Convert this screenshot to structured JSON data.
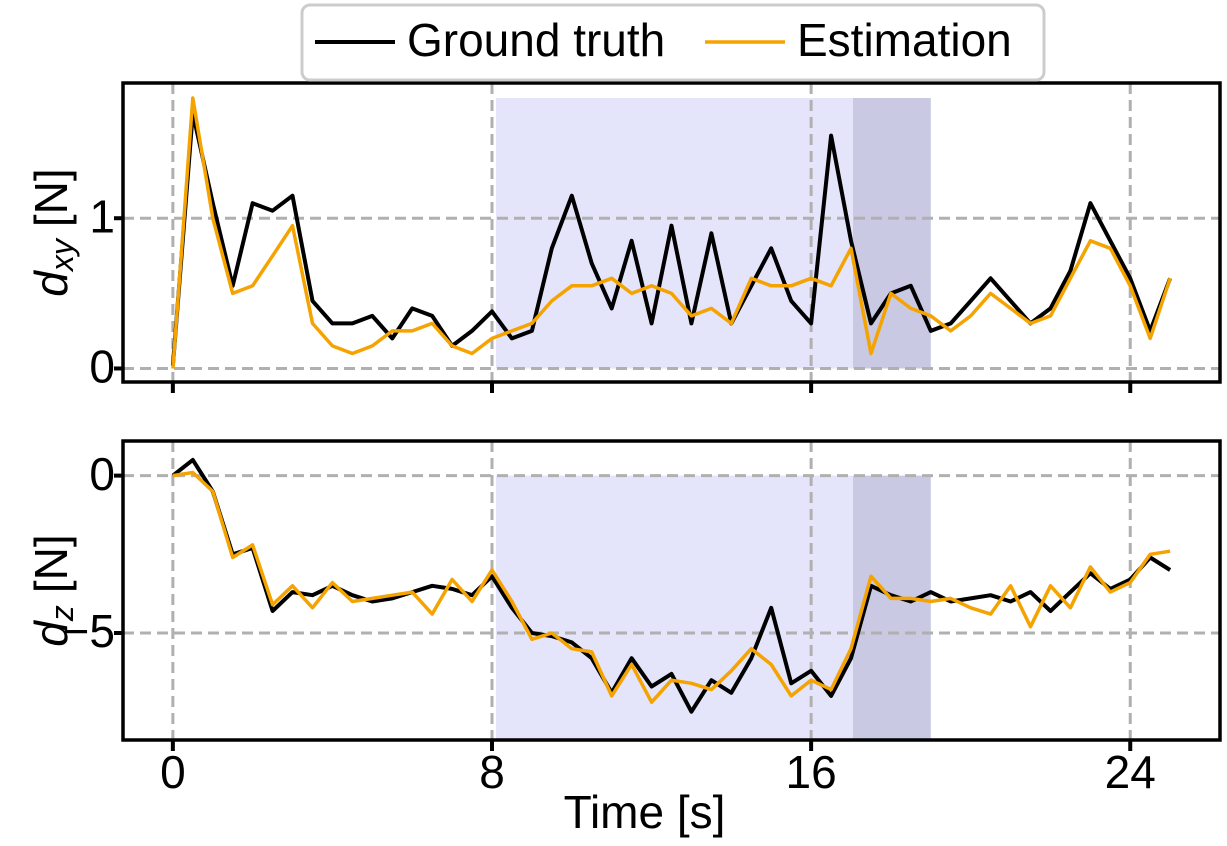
{
  "legend": {
    "position": "upper center",
    "outside": true
  },
  "chart_data": [
    {
      "type": "line",
      "ylabel": [
        "d",
        "xy",
        "[N]"
      ],
      "x": [
        0,
        0.5,
        1,
        1.5,
        2,
        2.5,
        3,
        3.5,
        4,
        4.5,
        5,
        5.5,
        6,
        6.5,
        7,
        7.5,
        8,
        8.5,
        9,
        9.5,
        10,
        10.5,
        11,
        11.5,
        12,
        12.5,
        13,
        13.5,
        14,
        14.5,
        15,
        15.5,
        16,
        16.5,
        17,
        17.5,
        18,
        18.5,
        19,
        19.5,
        20,
        20.5,
        21,
        21.5,
        22,
        22.5,
        23,
        23.5,
        24,
        24.5,
        25
      ],
      "series": [
        {
          "name": "Ground truth",
          "color": "#000000",
          "values": [
            0.02,
            1.7,
            1.1,
            0.55,
            1.1,
            1.05,
            1.15,
            0.45,
            0.3,
            0.3,
            0.35,
            0.2,
            0.4,
            0.35,
            0.15,
            0.25,
            0.38,
            0.2,
            0.25,
            0.8,
            1.15,
            0.7,
            0.4,
            0.85,
            0.3,
            0.95,
            0.3,
            0.9,
            0.3,
            0.55,
            0.8,
            0.45,
            0.3,
            1.55,
            0.85,
            0.3,
            0.5,
            0.55,
            0.25,
            0.3,
            0.45,
            0.6,
            0.45,
            0.3,
            0.4,
            0.65,
            1.1,
            0.85,
            0.6,
            0.25,
            0.6
          ]
        },
        {
          "name": "Estimation",
          "color": "#f5a300",
          "values": [
            0,
            1.8,
            1.0,
            0.5,
            0.55,
            0.75,
            0.95,
            0.3,
            0.15,
            0.1,
            0.15,
            0.25,
            0.25,
            0.3,
            0.15,
            0.1,
            0.2,
            0.25,
            0.3,
            0.45,
            0.55,
            0.55,
            0.6,
            0.5,
            0.55,
            0.5,
            0.35,
            0.4,
            0.3,
            0.6,
            0.55,
            0.55,
            0.6,
            0.55,
            0.8,
            0.1,
            0.5,
            0.4,
            0.35,
            0.25,
            0.35,
            0.5,
            0.4,
            0.3,
            0.35,
            0.6,
            0.85,
            0.8,
            0.55,
            0.2,
            0.6
          ]
        }
      ],
      "shaded_regions": [
        {
          "x": [
            8.1,
            17.05
          ],
          "y": [
            0,
            1.8
          ],
          "color": "#e4e4fb"
        },
        {
          "x": [
            17.05,
            19.0
          ],
          "y": [
            0,
            1.8
          ],
          "color": "#c9c9e3"
        }
      ],
      "xlim": [
        -1.25,
        26.25
      ],
      "xticks": [
        0,
        8,
        16,
        24
      ],
      "ylim": [
        -0.09,
        1.9
      ],
      "yticks": [
        0,
        1
      ],
      "grid": true
    },
    {
      "type": "line",
      "ylabel": [
        "d",
        "z",
        "[N]"
      ],
      "xlabel": "Time [s]",
      "x": [
        0,
        0.5,
        1,
        1.5,
        2,
        2.5,
        3,
        3.5,
        4,
        4.5,
        5,
        5.5,
        6,
        6.5,
        7,
        7.5,
        8,
        8.5,
        9,
        9.5,
        10,
        10.5,
        11,
        11.5,
        12,
        12.5,
        13,
        13.5,
        14,
        14.5,
        15,
        15.5,
        16,
        16.5,
        17,
        17.5,
        18,
        18.5,
        19,
        19.5,
        20,
        20.5,
        21,
        21.5,
        22,
        22.5,
        23,
        23.5,
        24,
        24.5,
        25
      ],
      "series": [
        {
          "color": "#000000",
          "values": [
            0,
            0.5,
            -0.5,
            -2.5,
            -2.3,
            -4.3,
            -3.7,
            -3.8,
            -3.5,
            -3.8,
            -4.0,
            -3.9,
            -3.7,
            -3.5,
            -3.6,
            -3.8,
            -3.2,
            -4.2,
            -5.0,
            -5.1,
            -5.3,
            -5.8,
            -6.9,
            -5.8,
            -6.7,
            -6.3,
            -7.5,
            -6.5,
            -6.9,
            -5.8,
            -4.2,
            -6.6,
            -6.2,
            -7.0,
            -5.8,
            -3.5,
            -3.8,
            -4.0,
            -3.7,
            -4.0,
            -3.9,
            -3.8,
            -4.0,
            -3.7,
            -4.3,
            -3.7,
            -3.1,
            -3.6,
            -3.3,
            -2.6,
            -3.0
          ]
        },
        {
          "color": "#f5a300",
          "values": [
            0,
            0.1,
            -0.5,
            -2.6,
            -2.2,
            -4.1,
            -3.5,
            -4.2,
            -3.4,
            -4.0,
            -3.9,
            -3.8,
            -3.7,
            -4.4,
            -3.3,
            -4.0,
            -3.0,
            -4.0,
            -5.2,
            -5.0,
            -5.5,
            -5.6,
            -7.0,
            -6.0,
            -7.2,
            -6.5,
            -6.6,
            -6.8,
            -6.2,
            -5.5,
            -6.0,
            -7.0,
            -6.5,
            -6.8,
            -5.5,
            -3.2,
            -3.9,
            -3.9,
            -4.0,
            -3.9,
            -4.2,
            -4.4,
            -3.5,
            -4.8,
            -3.5,
            -4.2,
            -2.9,
            -3.7,
            -3.4,
            -2.5,
            -2.4
          ]
        }
      ],
      "shaded_regions": [
        {
          "x": [
            8.1,
            17.05
          ],
          "y": [
            0,
            -8.4
          ],
          "color": "#e4e4fb"
        },
        {
          "x": [
            17.05,
            19.0
          ],
          "y": [
            0,
            -8.4
          ],
          "color": "#c9c9e3"
        }
      ],
      "xlim": [
        -1.25,
        26.25
      ],
      "xticks": [
        0,
        8,
        16,
        {
          "value": 24,
          "label": "24"
        }
      ],
      "ylim": [
        -8.4,
        1.1
      ],
      "yticks": [
        {
          "value": -5,
          "label": "−5"
        },
        0
      ],
      "grid": true
    }
  ]
}
